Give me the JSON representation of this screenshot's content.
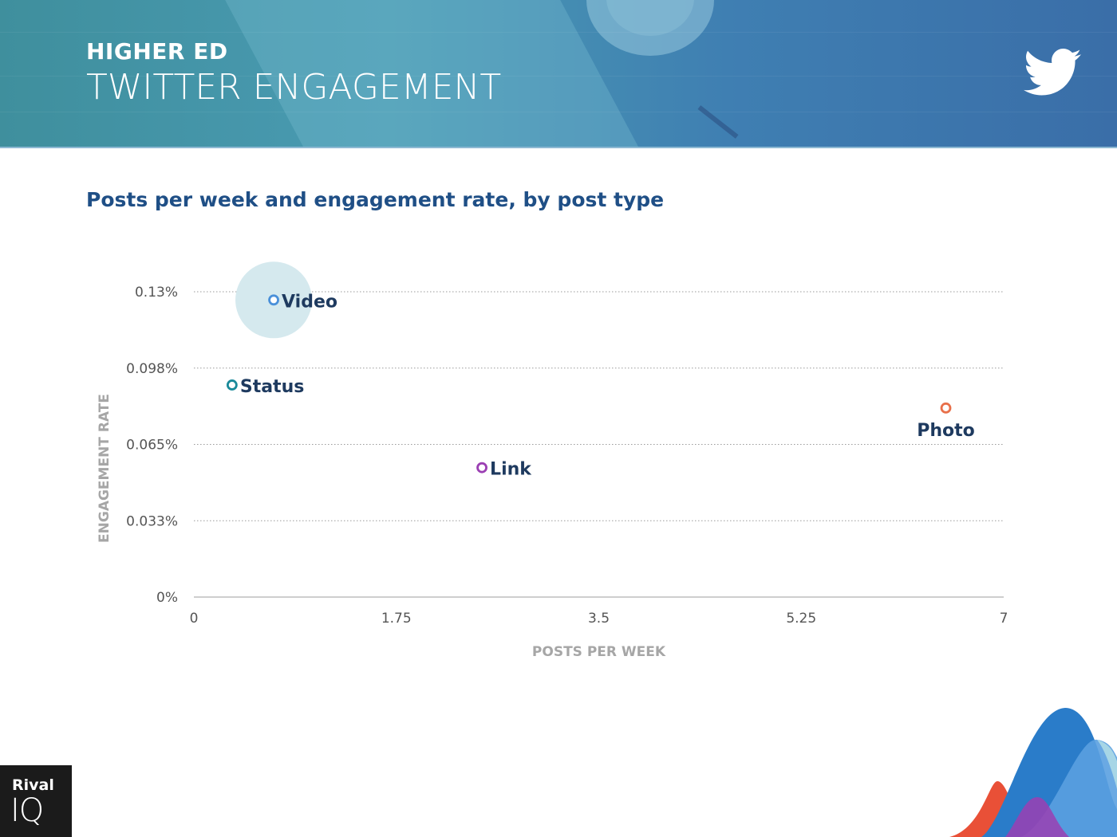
{
  "header": {
    "subtitle": "HIGHER ED",
    "title": "TWITTER ENGAGEMENT"
  },
  "logo": {
    "line1": "Rival",
    "line2": "IQ"
  },
  "chart_data": {
    "type": "scatter",
    "title": "Posts per week and engagement rate, by post type",
    "xlabel": "POSTS PER WEEK",
    "ylabel": "ENGAGEMENT RATE",
    "xlim": [
      0,
      7
    ],
    "ylim": [
      0,
      0.13
    ],
    "x_ticks": [
      0,
      1.75,
      3.5,
      5.25,
      7
    ],
    "x_tick_labels": [
      "0",
      "1.75",
      "3.5",
      "5.25",
      "7"
    ],
    "y_ticks": [
      0,
      0.0325,
      0.065,
      0.0975,
      0.13
    ],
    "y_tick_labels": [
      "0%",
      "0.033%",
      "0.065%",
      "0.098%",
      "0.13%"
    ],
    "grid": "horizontal-dotted",
    "points": [
      {
        "label": "Video",
        "x": 0.69,
        "y": 0.1265,
        "color": "#4a90d9",
        "halo": true
      },
      {
        "label": "Status",
        "x": 0.33,
        "y": 0.0903,
        "color": "#1a8a9a"
      },
      {
        "label": "Photo",
        "x": 6.5,
        "y": 0.0805,
        "color": "#e8704a",
        "label_below": true
      },
      {
        "label": "Link",
        "x": 2.49,
        "y": 0.0551,
        "color": "#9b3fb3"
      }
    ],
    "colors": {
      "halo": "#d5e9ee",
      "axis_text": "#555555",
      "axis_title": "#a6a6a6",
      "label_text": "#1e3a5f",
      "grid": "#9a9a9a"
    }
  }
}
